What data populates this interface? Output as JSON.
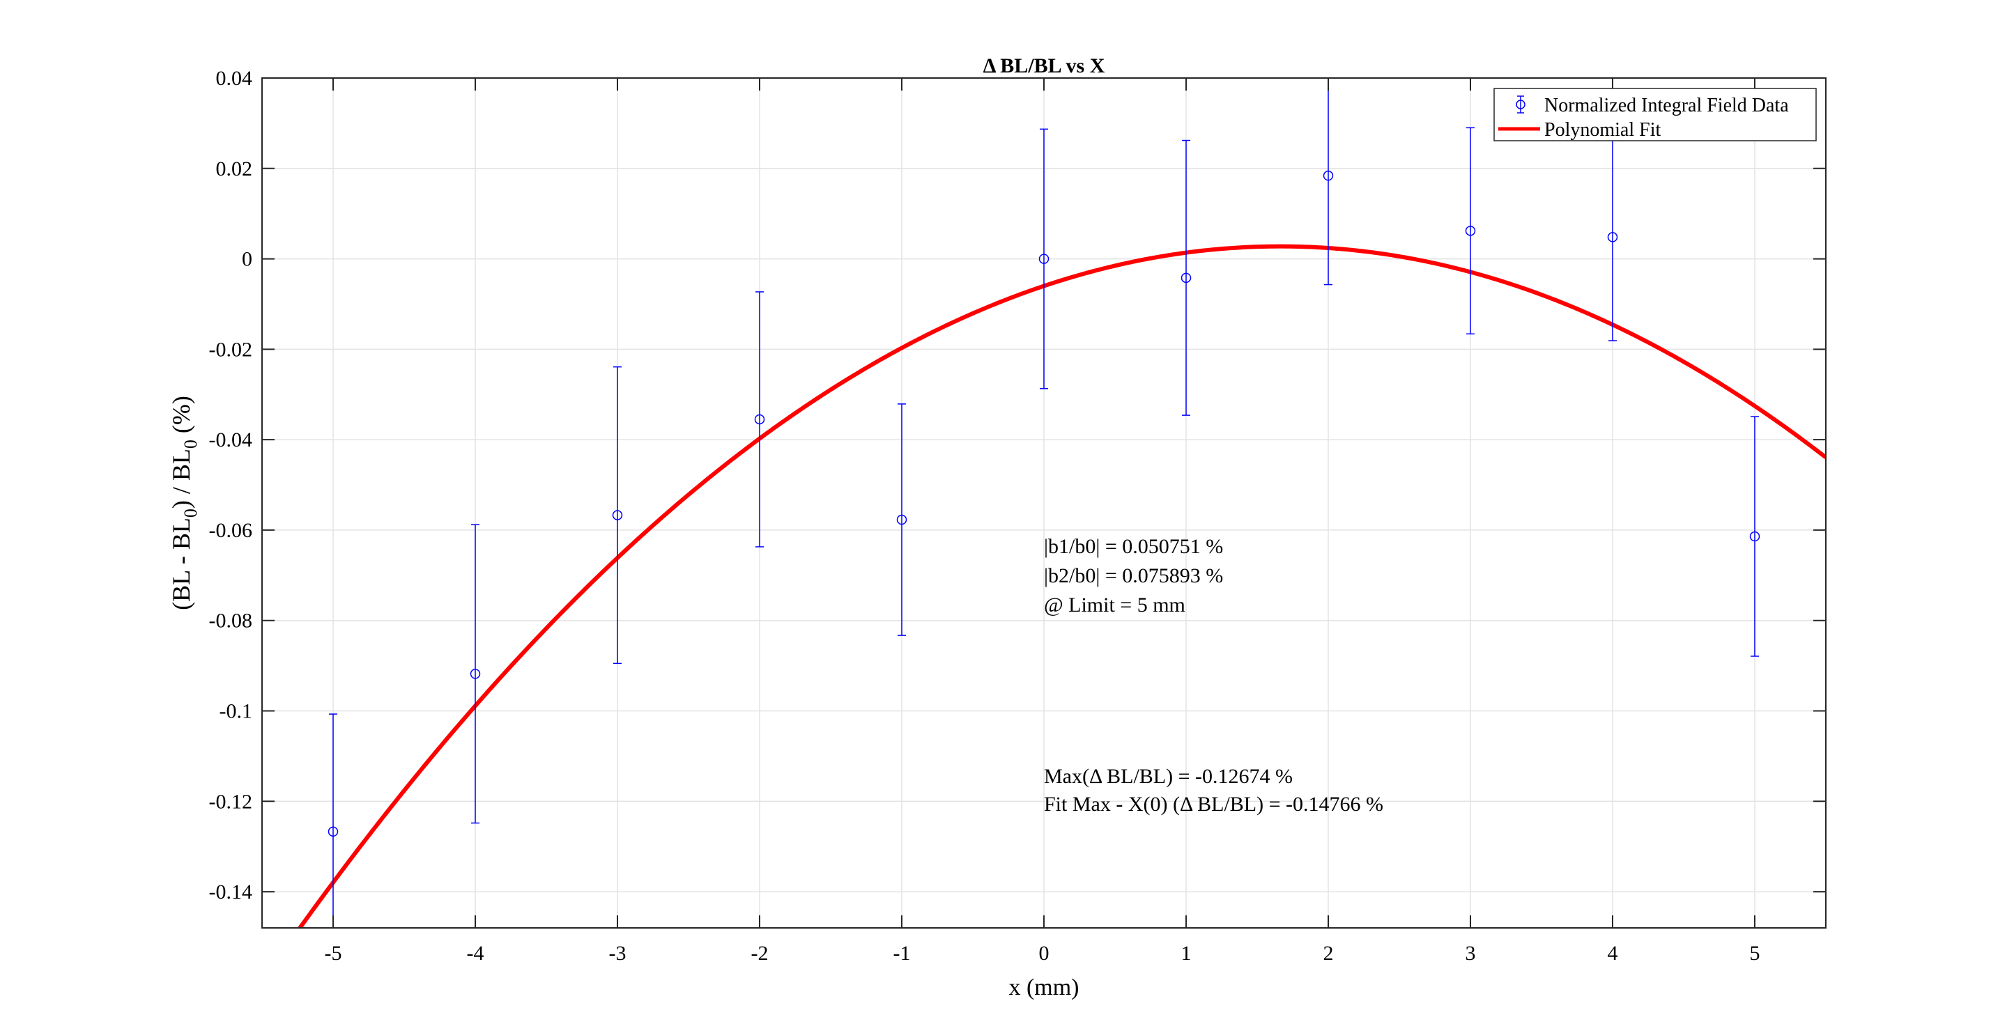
{
  "chart_data": {
    "type": "scatter",
    "title": "Δ BL/BL vs X",
    "xlabel": "x (mm)",
    "ylabel": "(BL - BL",
    "ylabel_sub": "0",
    "ylabel_mid": ") / BL",
    "ylabel_sub2": "0",
    "ylabel_end": " (%)",
    "xlim": [
      -5.5,
      5.5
    ],
    "ylim": [
      -0.148,
      0.04
    ],
    "x_ticks": [
      -5,
      -4,
      -3,
      -2,
      -1,
      0,
      1,
      2,
      3,
      4,
      5
    ],
    "y_ticks": [
      -0.14,
      -0.12,
      -0.1,
      -0.08,
      -0.06,
      -0.04,
      -0.02,
      0,
      0.02,
      0.04
    ],
    "grid": true,
    "legend_position": "top-right",
    "series": [
      {
        "name": "Normalized Integral Field Data",
        "style": "errorbar",
        "color": "#0000ff",
        "x": [
          -5,
          -4,
          -3,
          -2,
          -1,
          0,
          1,
          2,
          3,
          4,
          5
        ],
        "y": [
          -0.1267,
          -0.0918,
          -0.0567,
          -0.0355,
          -0.0577,
          0.0,
          -0.0042,
          0.0184,
          0.0062,
          0.0048,
          -0.0614
        ],
        "err": [
          0.026,
          0.033,
          0.0328,
          0.0282,
          0.0256,
          0.0287,
          0.0304,
          0.0241,
          0.0228,
          0.0229,
          0.0265
        ]
      },
      {
        "name": "Polynomial Fit",
        "style": "line",
        "color": "#ff0000",
        "coefficients": [
          -0.006,
          0.01054,
          -0.00317
        ]
      }
    ],
    "annotations": [
      "|b1/b0| = 0.050751 %",
      "|b2/b0| = 0.075893 %",
      "@ Limit = 5 mm",
      "Max(Δ BL/BL) = -0.12674 %",
      "Fit Max - X(0) (Δ BL/BL) = -0.14766 %"
    ]
  }
}
